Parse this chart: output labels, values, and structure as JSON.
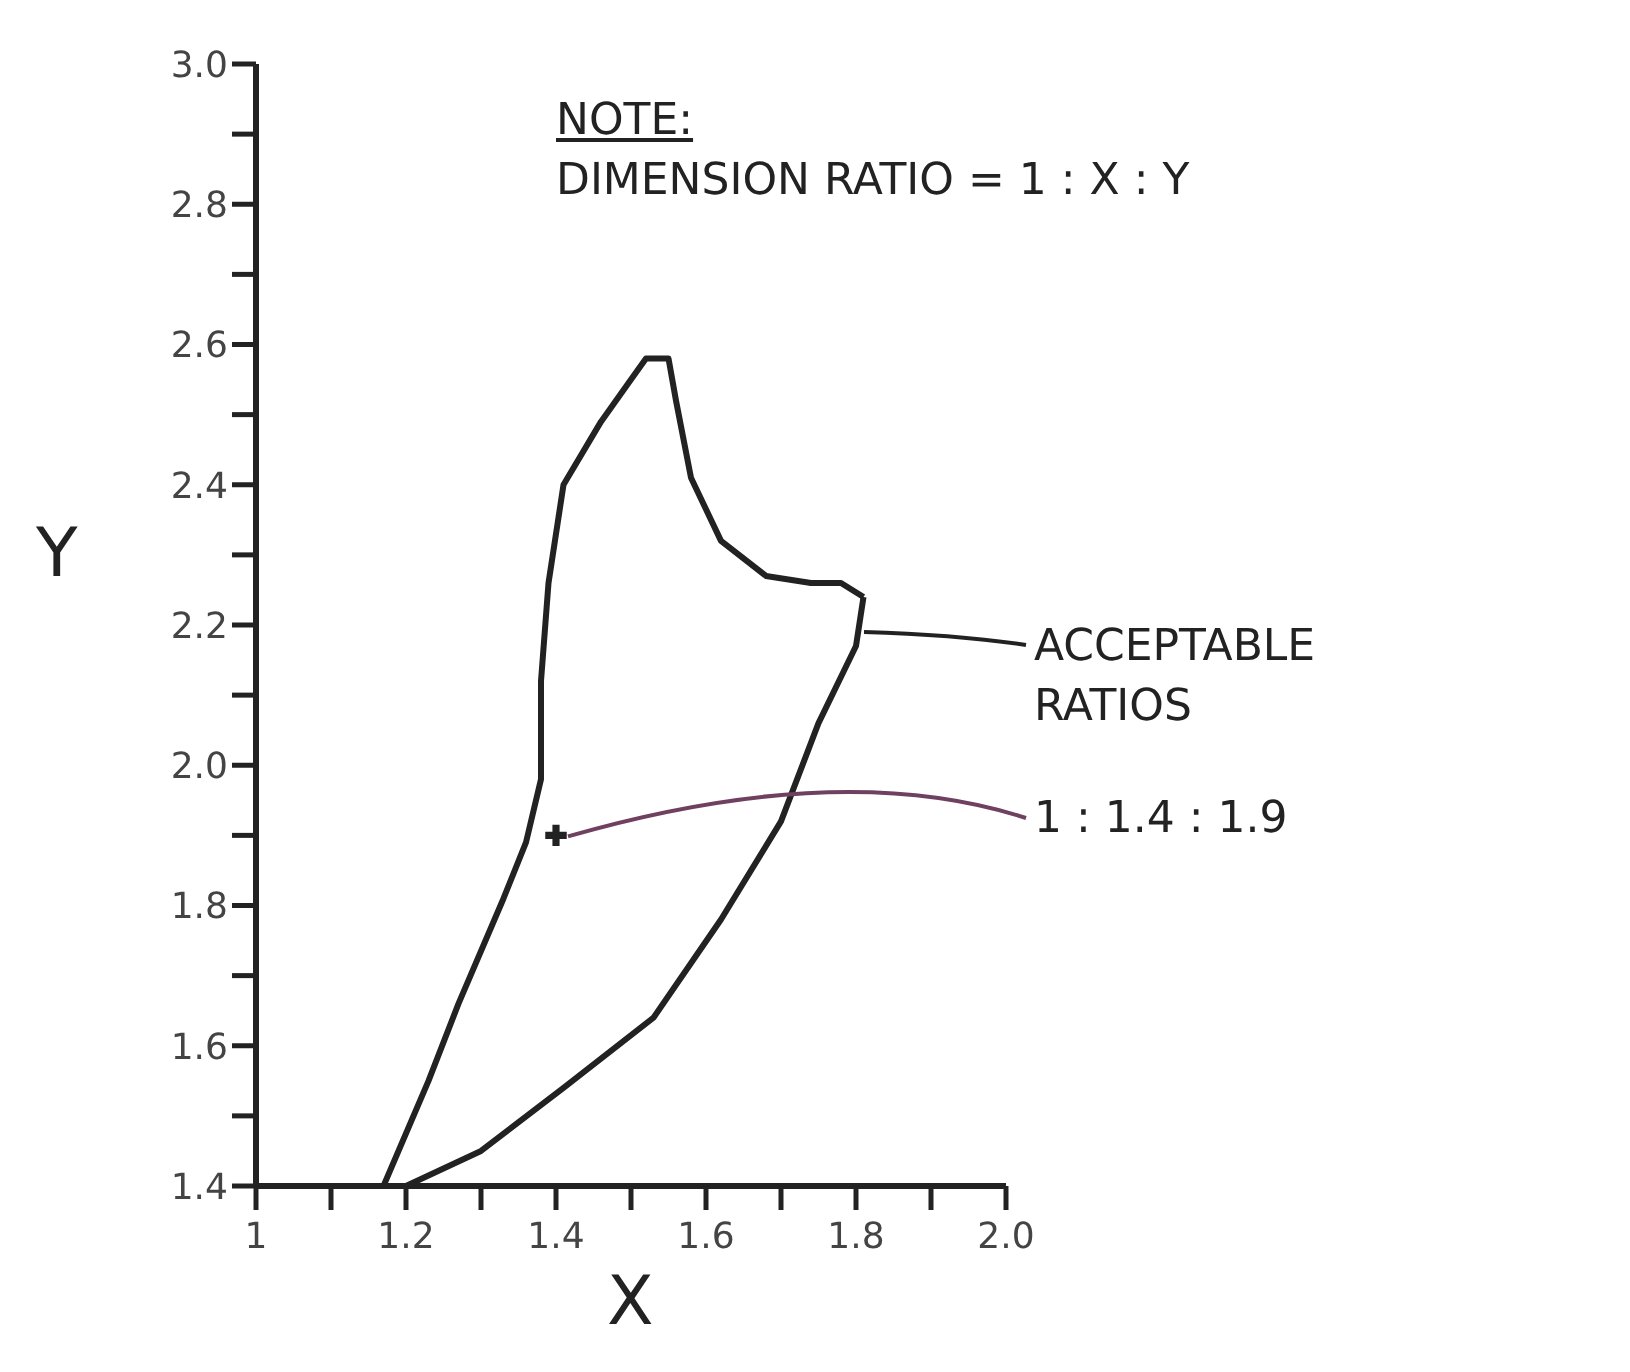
{
  "chart_data": {
    "type": "line",
    "xlabel": "X",
    "ylabel": "Y",
    "xlim": [
      1,
      2.0
    ],
    "ylim": [
      1.4,
      3.0
    ],
    "xticks": [
      1,
      {
        "value": 1.1,
        "label": null
      },
      1.2,
      {
        "value": 1.3,
        "label": null
      },
      1.4,
      {
        "value": 1.5,
        "label": null
      },
      1.6,
      {
        "value": 1.7,
        "label": null
      },
      1.8,
      {
        "value": 1.9,
        "label": null
      },
      {
        "value": 2.0,
        "label": "2.0"
      }
    ],
    "yticks": [
      1.4,
      {
        "value": 1.5,
        "label": null
      },
      1.6,
      {
        "value": 1.7,
        "label": null
      },
      1.8,
      {
        "value": 1.9,
        "label": null
      },
      {
        "value": 2.0,
        "label": "2.0"
      },
      {
        "value": 2.1,
        "label": null
      },
      2.2,
      {
        "value": 2.3,
        "label": null
      },
      2.4,
      {
        "value": 2.5,
        "label": null
      },
      2.6,
      {
        "value": 2.7,
        "label": null
      },
      2.8,
      {
        "value": 2.9,
        "label": null
      },
      {
        "value": 3.0,
        "label": "3.0"
      }
    ],
    "grid": false,
    "legend": false,
    "marker": "none",
    "series": [
      {
        "color": "#222222",
        "x": [
          1.17,
          1.23,
          1.27,
          1.33,
          1.36,
          1.38,
          1.38,
          1.39,
          1.41,
          1.46,
          1.5,
          1.52,
          1.55,
          1.56,
          1.58,
          1.62,
          1.68,
          1.74,
          1.78,
          1.81
        ],
        "values": [
          1.4,
          1.55,
          1.66,
          1.81,
          1.89,
          1.98,
          2.12,
          2.26,
          2.4,
          2.49,
          2.55,
          2.58,
          2.58,
          2.52,
          2.41,
          2.32,
          2.27,
          2.26,
          2.26,
          2.24
        ]
      },
      {
        "color": "#222222",
        "x": [
          1.17,
          1.2,
          1.3,
          1.41,
          1.53,
          1.62,
          1.7,
          1.75,
          1.8,
          1.81
        ],
        "values": [
          1.4,
          1.4,
          1.45,
          1.54,
          1.64,
          1.78,
          1.92,
          2.06,
          2.17,
          2.24
        ]
      },
      {
        "type": "scatter",
        "color": "#222222",
        "marker": "cross",
        "x": [
          1.4
        ],
        "values": [
          1.9
        ]
      }
    ],
    "annotations": [
      "NOTE:",
      "DIMENSION RATIO = 1 : X : Y",
      "ACCEPTABLE RATIOS",
      {
        "text": "1 : 1.4 : 1.9",
        "x": 1.4,
        "y": 1.9
      }
    ]
  }
}
